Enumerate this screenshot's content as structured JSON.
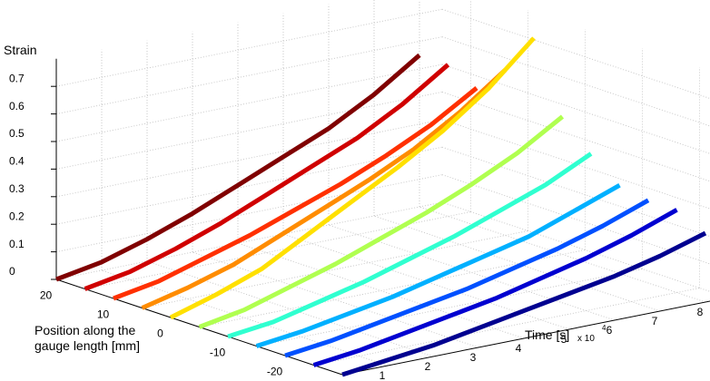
{
  "chart_data": {
    "type": "waterfall3d",
    "z_label": "Strain",
    "position_label": "Position along the gauge length [mm]",
    "time_label": "Time [s]",
    "time_multiplier": {
      "base": "x 10",
      "exponent": "4"
    },
    "x": [
      0,
      1,
      2,
      3,
      4,
      5,
      6,
      7,
      8
    ],
    "xlim": [
      0,
      8.5
    ],
    "xticks": [
      1,
      2,
      3,
      4,
      5,
      6,
      7,
      8
    ],
    "position_lim": [
      -25,
      25
    ],
    "position_ticks": [
      20,
      10,
      0,
      -10,
      -20
    ],
    "zlim": [
      0,
      0.8
    ],
    "zticks": [
      0,
      0.1,
      0.2,
      0.3,
      0.4,
      0.5,
      0.6,
      0.7
    ],
    "grid": true,
    "series": [
      {
        "position": 25,
        "color": "#800000",
        "values": [
          0,
          0.03,
          0.08,
          0.14,
          0.21,
          0.28,
          0.35,
          0.44,
          0.55
        ]
      },
      {
        "position": 20,
        "color": "#d00000",
        "values": [
          0,
          0.03,
          0.08,
          0.14,
          0.21,
          0.28,
          0.35,
          0.44,
          0.55
        ]
      },
      {
        "position": 15,
        "color": "#ff3000",
        "values": [
          0,
          0.03,
          0.08,
          0.13,
          0.19,
          0.25,
          0.32,
          0.4,
          0.5
        ]
      },
      {
        "position": 10,
        "color": "#ff8c00",
        "values": [
          0,
          0.04,
          0.09,
          0.16,
          0.23,
          0.3,
          0.38,
          0.48,
          0.6
        ]
      },
      {
        "position": 5,
        "color": "#ffe000",
        "values": [
          0,
          0.05,
          0.11,
          0.2,
          0.29,
          0.38,
          0.48,
          0.6,
          0.75
        ]
      },
      {
        "position": 0,
        "color": "#b0ff50",
        "values": [
          0,
          0.03,
          0.08,
          0.13,
          0.19,
          0.25,
          0.32,
          0.4,
          0.5
        ]
      },
      {
        "position": -5,
        "color": "#30ffd0",
        "values": [
          0,
          0.02,
          0.06,
          0.1,
          0.15,
          0.2,
          0.26,
          0.32,
          0.4
        ]
      },
      {
        "position": -10,
        "color": "#00b0ff",
        "values": [
          0,
          0.02,
          0.05,
          0.08,
          0.12,
          0.16,
          0.2,
          0.26,
          0.32
        ]
      },
      {
        "position": -15,
        "color": "#0050ff",
        "values": [
          0,
          0.02,
          0.05,
          0.08,
          0.11,
          0.15,
          0.19,
          0.24,
          0.3
        ]
      },
      {
        "position": -20,
        "color": "#0000d0",
        "values": [
          0,
          0.02,
          0.05,
          0.08,
          0.11,
          0.15,
          0.19,
          0.24,
          0.3
        ]
      },
      {
        "position": -25,
        "color": "#000090",
        "values": [
          0,
          0.02,
          0.04,
          0.07,
          0.1,
          0.13,
          0.16,
          0.2,
          0.25
        ]
      }
    ]
  }
}
